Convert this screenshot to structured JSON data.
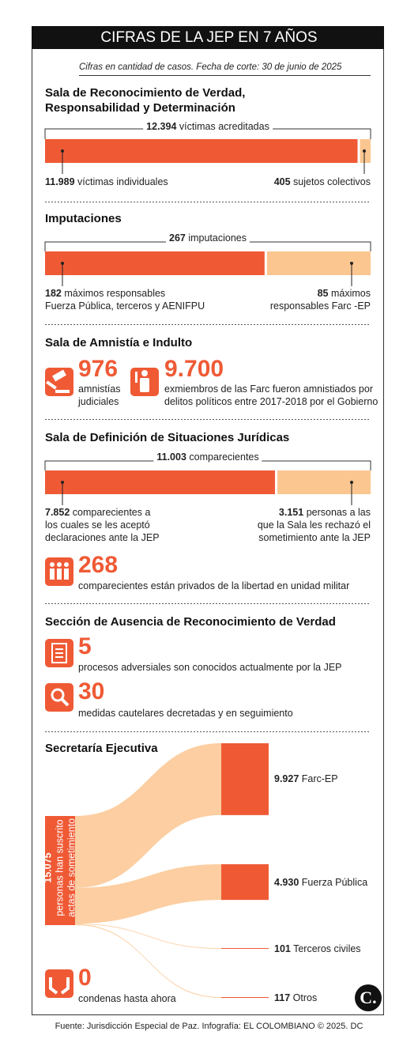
{
  "header": {
    "title": "CIFRAS DE LA JEP EN 7 AÑOS",
    "note": "Cifras en cantidad de casos. Fecha de corte: 30 de junio de 2025"
  },
  "reconocimiento": {
    "title": [
      "Sala de Reconocimiento de Verdad,",
      "Responsabilidad y Determinación"
    ],
    "total": {
      "value": 12394,
      "label": "12.394",
      "text": "víctimas acreditadas"
    },
    "parts": [
      {
        "value": 11989,
        "label": "11.989",
        "text": [
          "víctimas individuales"
        ]
      },
      {
        "value": 405,
        "text": [
          "sujetos colectivos"
        ]
      }
    ]
  },
  "imputaciones": {
    "title": "Imputaciones",
    "total": {
      "value": 267,
      "text": "imputaciones"
    },
    "parts": [
      {
        "value": 182,
        "text": [
          "máximos responsables",
          "Fuerza Pública, terceros y AENIFPU"
        ]
      },
      {
        "value": 85,
        "text": [
          "máximos",
          "responsables Farc -EP"
        ]
      }
    ]
  },
  "amnistia": {
    "title": "Sala de Amnistía e Indulto",
    "items": [
      {
        "value": 976,
        "text": [
          "amnistías",
          "judiciales"
        ]
      },
      {
        "value": 9700,
        "label": "9.700",
        "text": [
          "exmiembros de las Farc fueron amnistiados por",
          "delitos políticos entre 2017-2018 por el Gobierno"
        ]
      }
    ]
  },
  "definicion": {
    "title": "Sala de Definición de Situaciones Jurídicas",
    "total": {
      "value": 11003,
      "label": "11.003",
      "text": "comparecientes"
    },
    "parts": [
      {
        "value": 7852,
        "label": "7.852",
        "text": [
          "comparecientes a",
          "los cuales se les aceptó",
          "declaraciones ante la JEP"
        ]
      },
      {
        "value": 3151,
        "label": "3.151",
        "text": [
          "personas a las",
          "que la Sala les rechazó el",
          "sometimiento ante la JEP"
        ]
      }
    ],
    "detained": {
      "value": 268,
      "text": "comparecientes están privados de la libertad en unidad militar"
    }
  },
  "ausencia": {
    "title": "Sección de Ausencia de Reconocimiento de Verdad",
    "items": [
      {
        "value": 5,
        "text": "procesos adversiales son conocidos actualmente por la JEP"
      },
      {
        "value": 30,
        "text": "medidas cautelares decretadas y en seguimiento"
      }
    ]
  },
  "secretaria": {
    "title": "Secretaría Ejecutiva",
    "source": {
      "value": 15075,
      "label": "15.075",
      "text": [
        "personas han suscrito",
        "actas de sometimiento"
      ]
    },
    "targets": [
      {
        "value": 9927,
        "label": "9.927",
        "name": "Farc-EP"
      },
      {
        "value": 4930,
        "label": "4.930",
        "name": "Fuerza Pública"
      },
      {
        "value": 101,
        "name": "Terceros civiles"
      },
      {
        "value": 117,
        "name": "Otros"
      }
    ],
    "convictions": {
      "value": 0,
      "text": "condenas hasta ahora"
    }
  },
  "footer": {
    "source": "Fuente: Jurisdicción Especial de Paz. Infografía: EL COLOMBIANO © 2025. DC",
    "logo": "C."
  }
}
